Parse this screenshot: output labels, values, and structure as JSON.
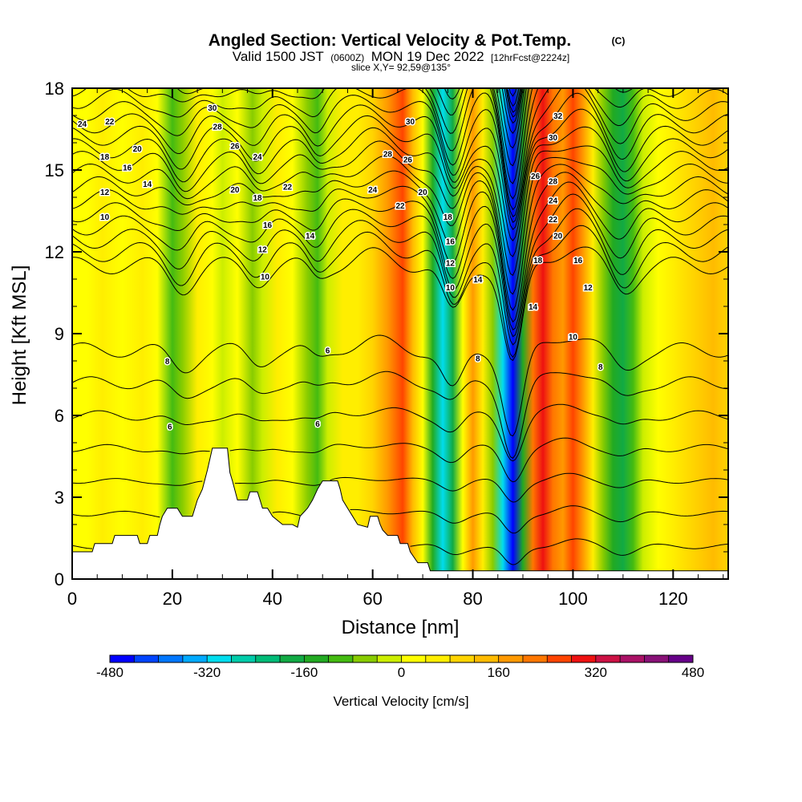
{
  "title": {
    "main": "Angled Section: Vertical Velocity & Pot.Temp.",
    "copyright": "(C)",
    "valid_prefix": "Valid 1500 JST",
    "utc": "(0600Z)",
    "valid_date": "MON 19 Dec 2022",
    "forecast": "[12hrFcst@2224z]",
    "slice": "slice X,Y= 92,59@135°"
  },
  "chart_data": {
    "type": "heatmap",
    "xlabel": "Distance [nm]",
    "ylabel": "Height [Kft MSL]",
    "xlim": [
      0,
      131
    ],
    "ylim": [
      0,
      18
    ],
    "x_ticks": [
      0,
      20,
      40,
      60,
      80,
      100,
      120
    ],
    "y_ticks": [
      0,
      3,
      6,
      9,
      12,
      15,
      18
    ],
    "colorbar": {
      "label": "Vertical Velocity [cm/s]",
      "min": -480,
      "max": 480,
      "step": 40,
      "tick_values": [
        -480,
        -320,
        -160,
        0,
        160,
        320,
        480
      ],
      "tick_labels": [
        "-480",
        "-320",
        "-160",
        "0",
        "160",
        "320",
        "480"
      ],
      "colors": [
        "#0000ff",
        "#0044ff",
        "#0077ff",
        "#00aaff",
        "#00ddee",
        "#00ccaa",
        "#00bb77",
        "#11aa44",
        "#22aa22",
        "#44bb11",
        "#88cc00",
        "#ccee00",
        "#ffff00",
        "#ffee00",
        "#ffd400",
        "#ffbb00",
        "#ff9900",
        "#ff7700",
        "#ff4400",
        "#ee1111",
        "#cc1144",
        "#aa1166",
        "#881177",
        "#660088"
      ]
    },
    "vertical_velocity_columns": [
      {
        "x": 0,
        "w": 8
      },
      {
        "x": 3,
        "w": 20
      },
      {
        "x": 6,
        "w": 40
      },
      {
        "x": 10,
        "w": 10
      },
      {
        "x": 14,
        "w": 40
      },
      {
        "x": 17,
        "w": 0
      },
      {
        "x": 20,
        "w": -100
      },
      {
        "x": 22,
        "w": -60
      },
      {
        "x": 25,
        "w": 50
      },
      {
        "x": 28,
        "w": 30
      },
      {
        "x": 30,
        "w": -30
      },
      {
        "x": 33,
        "w": 20
      },
      {
        "x": 36,
        "w": -80
      },
      {
        "x": 38,
        "w": -40
      },
      {
        "x": 41,
        "w": 60
      },
      {
        "x": 44,
        "w": 30
      },
      {
        "x": 47,
        "w": -60
      },
      {
        "x": 49,
        "w": -110
      },
      {
        "x": 51,
        "w": -40
      },
      {
        "x": 54,
        "w": 40
      },
      {
        "x": 57,
        "w": 60
      },
      {
        "x": 60,
        "w": 80
      },
      {
        "x": 63,
        "w": 160
      },
      {
        "x": 66,
        "w": 240
      },
      {
        "x": 68,
        "w": 140
      },
      {
        "x": 70,
        "w": 0
      },
      {
        "x": 72,
        "w": -140
      },
      {
        "x": 74,
        "w": -320
      },
      {
        "x": 76,
        "w": -200
      },
      {
        "x": 78,
        "w": 0
      },
      {
        "x": 80,
        "w": 160
      },
      {
        "x": 82,
        "w": 60
      },
      {
        "x": 84,
        "w": -80
      },
      {
        "x": 86,
        "w": -300
      },
      {
        "x": 88,
        "w": -460
      },
      {
        "x": 90,
        "w": -160
      },
      {
        "x": 92,
        "w": 200
      },
      {
        "x": 94,
        "w": 280
      },
      {
        "x": 96,
        "w": 220
      },
      {
        "x": 98,
        "w": 160
      },
      {
        "x": 100,
        "w": 260
      },
      {
        "x": 102,
        "w": 180
      },
      {
        "x": 104,
        "w": 40
      },
      {
        "x": 106,
        "w": -60
      },
      {
        "x": 108,
        "w": -150
      },
      {
        "x": 110,
        "w": -180
      },
      {
        "x": 112,
        "w": -120
      },
      {
        "x": 114,
        "w": -40
      },
      {
        "x": 117,
        "w": 20
      },
      {
        "x": 120,
        "w": 60
      },
      {
        "x": 124,
        "w": 100
      },
      {
        "x": 128,
        "w": 140
      },
      {
        "x": 131,
        "w": 80
      }
    ],
    "terrain": [
      {
        "x": 0,
        "h": 1.0
      },
      {
        "x": 4,
        "h": 1.0
      },
      {
        "x": 4.5,
        "h": 1.3
      },
      {
        "x": 8,
        "h": 1.3
      },
      {
        "x": 8.5,
        "h": 1.6
      },
      {
        "x": 13,
        "h": 1.6
      },
      {
        "x": 13.5,
        "h": 1.3
      },
      {
        "x": 15,
        "h": 1.3
      },
      {
        "x": 15.5,
        "h": 1.6
      },
      {
        "x": 17,
        "h": 1.6
      },
      {
        "x": 17.5,
        "h": 2.0
      },
      {
        "x": 18,
        "h": 2.3
      },
      {
        "x": 19,
        "h": 2.6
      },
      {
        "x": 20,
        "h": 2.6
      },
      {
        "x": 21,
        "h": 2.6
      },
      {
        "x": 22,
        "h": 2.3
      },
      {
        "x": 24,
        "h": 2.3
      },
      {
        "x": 24.5,
        "h": 2.6
      },
      {
        "x": 25,
        "h": 2.9
      },
      {
        "x": 26,
        "h": 3.3
      },
      {
        "x": 27,
        "h": 4.0
      },
      {
        "x": 28,
        "h": 4.8
      },
      {
        "x": 31,
        "h": 4.8
      },
      {
        "x": 31.5,
        "h": 3.9
      },
      {
        "x": 32,
        "h": 3.6
      },
      {
        "x": 33,
        "h": 2.9
      },
      {
        "x": 34,
        "h": 2.9
      },
      {
        "x": 35,
        "h": 2.9
      },
      {
        "x": 35.5,
        "h": 3.2
      },
      {
        "x": 37,
        "h": 3.2
      },
      {
        "x": 37.5,
        "h": 2.9
      },
      {
        "x": 38,
        "h": 2.6
      },
      {
        "x": 39,
        "h": 2.6
      },
      {
        "x": 40,
        "h": 2.3
      },
      {
        "x": 42,
        "h": 2.0
      },
      {
        "x": 44,
        "h": 2.0
      },
      {
        "x": 45,
        "h": 1.9
      },
      {
        "x": 45.5,
        "h": 2.3
      },
      {
        "x": 47,
        "h": 2.6
      },
      {
        "x": 48,
        "h": 2.9
      },
      {
        "x": 49,
        "h": 3.3
      },
      {
        "x": 50,
        "h": 3.6
      },
      {
        "x": 53,
        "h": 3.6
      },
      {
        "x": 53.5,
        "h": 3.3
      },
      {
        "x": 54,
        "h": 2.9
      },
      {
        "x": 55,
        "h": 2.6
      },
      {
        "x": 56,
        "h": 2.3
      },
      {
        "x": 57,
        "h": 2.0
      },
      {
        "x": 59,
        "h": 1.9
      },
      {
        "x": 59.5,
        "h": 2.3
      },
      {
        "x": 61,
        "h": 2.3
      },
      {
        "x": 61.5,
        "h": 2.0
      },
      {
        "x": 62,
        "h": 1.8
      },
      {
        "x": 63,
        "h": 1.6
      },
      {
        "x": 65,
        "h": 1.6
      },
      {
        "x": 65.5,
        "h": 1.3
      },
      {
        "x": 67,
        "h": 1.3
      },
      {
        "x": 67.5,
        "h": 1.0
      },
      {
        "x": 69,
        "h": 0.6
      },
      {
        "x": 71,
        "h": 0.6
      },
      {
        "x": 71.5,
        "h": 0.3
      },
      {
        "x": 131,
        "h": 0.3
      }
    ],
    "contour_labels": [
      {
        "text": "24",
        "x": 2,
        "y": 16.7
      },
      {
        "text": "22",
        "x": 7.5,
        "y": 16.8
      },
      {
        "text": "18",
        "x": 6.5,
        "y": 15.5
      },
      {
        "text": "20",
        "x": 13,
        "y": 15.8
      },
      {
        "text": "16",
        "x": 11,
        "y": 15.1
      },
      {
        "text": "14",
        "x": 15,
        "y": 14.5
      },
      {
        "text": "12",
        "x": 6.5,
        "y": 14.2
      },
      {
        "text": "10",
        "x": 6.5,
        "y": 13.3
      },
      {
        "text": "30",
        "x": 28,
        "y": 17.3
      },
      {
        "text": "28",
        "x": 29,
        "y": 16.6
      },
      {
        "text": "26",
        "x": 32.5,
        "y": 15.9
      },
      {
        "text": "24",
        "x": 37,
        "y": 15.5
      },
      {
        "text": "20",
        "x": 32.5,
        "y": 14.3
      },
      {
        "text": "18",
        "x": 37,
        "y": 14.0
      },
      {
        "text": "22",
        "x": 43,
        "y": 14.4
      },
      {
        "text": "16",
        "x": 39,
        "y": 13.0
      },
      {
        "text": "14",
        "x": 47.5,
        "y": 12.6
      },
      {
        "text": "12",
        "x": 38,
        "y": 12.1
      },
      {
        "text": "10",
        "x": 38.5,
        "y": 11.1
      },
      {
        "text": "30",
        "x": 67.5,
        "y": 16.8
      },
      {
        "text": "28",
        "x": 63,
        "y": 15.6
      },
      {
        "text": "26",
        "x": 67,
        "y": 15.4
      },
      {
        "text": "24",
        "x": 60,
        "y": 14.3
      },
      {
        "text": "20",
        "x": 70,
        "y": 14.2
      },
      {
        "text": "22",
        "x": 65.5,
        "y": 13.7
      },
      {
        "text": "18",
        "x": 75,
        "y": 13.3
      },
      {
        "text": "16",
        "x": 75.5,
        "y": 12.4
      },
      {
        "text": "12",
        "x": 75.5,
        "y": 11.6
      },
      {
        "text": "10",
        "x": 75.5,
        "y": 10.7
      },
      {
        "text": "14",
        "x": 81,
        "y": 11.0
      },
      {
        "text": "8",
        "x": 81,
        "y": 8.1
      },
      {
        "text": "32",
        "x": 97,
        "y": 17.0
      },
      {
        "text": "30",
        "x": 96,
        "y": 16.2
      },
      {
        "text": "26",
        "x": 92.5,
        "y": 14.8
      },
      {
        "text": "28",
        "x": 96,
        "y": 14.6
      },
      {
        "text": "24",
        "x": 96,
        "y": 13.9
      },
      {
        "text": "22",
        "x": 96,
        "y": 13.2
      },
      {
        "text": "20",
        "x": 97,
        "y": 12.6
      },
      {
        "text": "18",
        "x": 93,
        "y": 11.7
      },
      {
        "text": "16",
        "x": 101,
        "y": 11.7
      },
      {
        "text": "14",
        "x": 92,
        "y": 10.0
      },
      {
        "text": "12",
        "x": 103,
        "y": 10.7
      },
      {
        "text": "10",
        "x": 100,
        "y": 8.9
      },
      {
        "text": "8",
        "x": 105.5,
        "y": 7.8
      },
      {
        "text": "8",
        "x": 19,
        "y": 8.0
      },
      {
        "text": "6",
        "x": 51,
        "y": 8.4
      },
      {
        "text": "6",
        "x": 19.5,
        "y": 5.6
      },
      {
        "text": "6",
        "x": 49,
        "y": 5.7
      }
    ]
  }
}
